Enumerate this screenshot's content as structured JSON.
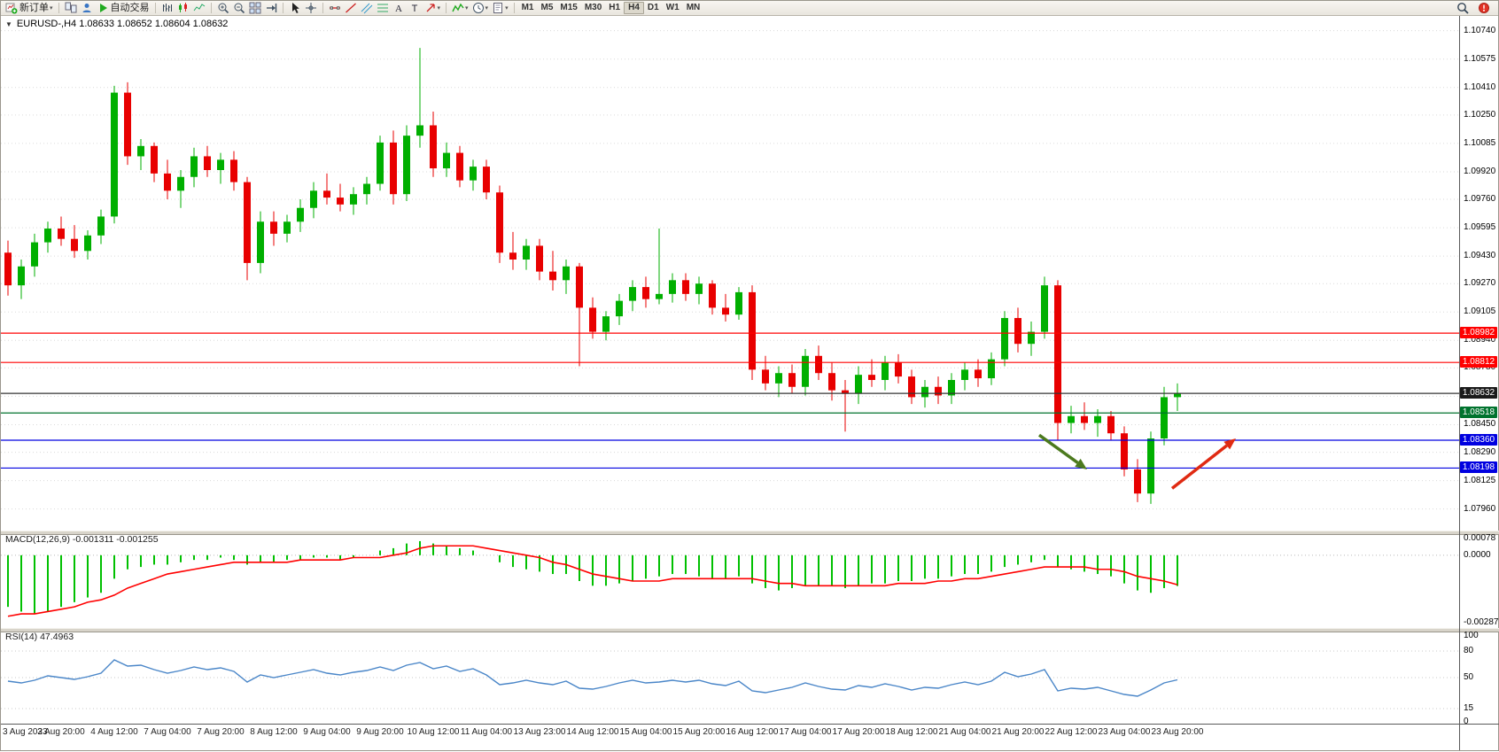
{
  "toolbar": {
    "groups": [
      {
        "items": [
          {
            "name": "new-order",
            "icon": "new-order",
            "label": "新订单",
            "caret": true
          }
        ]
      },
      {
        "items": [
          {
            "name": "charts",
            "icon": "charts"
          },
          {
            "name": "profile",
            "icon": "profile"
          },
          {
            "name": "auto-trading",
            "icon": "autotrade",
            "label": "自动交易"
          }
        ]
      },
      {
        "items": [
          {
            "name": "bar-chart",
            "icon": "bars"
          },
          {
            "name": "candle-chart",
            "icon": "candles"
          },
          {
            "name": "line-chart",
            "icon": "line"
          }
        ]
      },
      {
        "items": [
          {
            "name": "zoom-in",
            "icon": "zoom-in"
          },
          {
            "name": "zoom-out",
            "icon": "zoom-out"
          },
          {
            "name": "tile-windows",
            "icon": "tile"
          },
          {
            "name": "chart-shift",
            "icon": "shift"
          }
        ]
      },
      {
        "items": [
          {
            "name": "cursor",
            "icon": "cursor"
          },
          {
            "name": "crosshair",
            "icon": "crosshair"
          }
        ]
      },
      {
        "items": [
          {
            "name": "horizontal-line",
            "icon": "hline"
          },
          {
            "name": "trendline",
            "icon": "tline"
          },
          {
            "name": "channel",
            "icon": "channel"
          },
          {
            "name": "fibonacci",
            "icon": "fibo"
          },
          {
            "name": "text",
            "icon": "textA"
          },
          {
            "name": "label",
            "icon": "labelT"
          },
          {
            "name": "arrow-tools",
            "icon": "arrowtool",
            "caret": true
          }
        ]
      },
      {
        "items": [
          {
            "name": "indicators",
            "icon": "indicator",
            "caret": true
          },
          {
            "name": "periods",
            "icon": "clock",
            "caret": true
          },
          {
            "name": "templates",
            "icon": "template",
            "caret": true
          }
        ]
      }
    ],
    "timeframes": [
      "M1",
      "M5",
      "M15",
      "M30",
      "H1",
      "H4",
      "D1",
      "W1",
      "MN"
    ],
    "active_timeframe": "H4",
    "right": [
      {
        "name": "search",
        "icon": "magnifier"
      },
      {
        "name": "notification",
        "icon": "red-dot"
      }
    ]
  },
  "chart": {
    "collapse_icon": "▼",
    "symbol_info": "EURUSD-,H4  1.08633 1.08652 1.08604 1.08632"
  },
  "chart_data": {
    "type": "candlestick",
    "title": "EURUSD- H4",
    "symbol": "EURUSD-",
    "timeframe": "H4",
    "colors": {
      "up": "#00AF00",
      "down": "#E80000",
      "macd_hist": "#00C000",
      "macd_signal": "#FF0000",
      "rsi": "#4A86C8",
      "grid": "#DADADA",
      "current": "#333333"
    },
    "price_axis": {
      "ticks": [
        "1.10740",
        "1.10575",
        "1.10410",
        "1.10250",
        "1.10085",
        "1.09920",
        "1.09760",
        "1.09595",
        "1.09430",
        "1.09270",
        "1.09105",
        "1.08940",
        "1.08780",
        "1.08615",
        "1.08450",
        "1.08290",
        "1.08125",
        "1.07960"
      ]
    },
    "ohlc": [
      [
        1.0945,
        1.0952,
        1.092,
        1.0926
      ],
      [
        1.0926,
        1.0941,
        1.0918,
        1.0937
      ],
      [
        1.0937,
        1.0956,
        1.0931,
        1.0951
      ],
      [
        1.0951,
        1.0963,
        1.0945,
        1.0959
      ],
      [
        1.0959,
        1.0966,
        1.0949,
        1.0953
      ],
      [
        1.0953,
        1.0961,
        1.0942,
        1.0946
      ],
      [
        1.0946,
        1.0958,
        1.0941,
        1.0955
      ],
      [
        1.0955,
        1.097,
        1.095,
        1.0966
      ],
      [
        1.0966,
        1.1042,
        1.0962,
        1.1038
      ],
      [
        1.1038,
        1.1044,
        1.0996,
        1.1001
      ],
      [
        1.1001,
        1.1011,
        1.0993,
        1.1007
      ],
      [
        1.1007,
        1.1009,
        1.0986,
        1.0991
      ],
      [
        1.0991,
        1.0999,
        1.0976,
        1.0981
      ],
      [
        1.0981,
        1.0993,
        1.0971,
        1.0989
      ],
      [
        1.0989,
        1.1006,
        1.0983,
        1.1001
      ],
      [
        1.1001,
        1.1007,
        1.0989,
        1.0993
      ],
      [
        1.0993,
        1.1003,
        1.0985,
        1.0999
      ],
      [
        1.0999,
        1.1004,
        1.0981,
        1.0986
      ],
      [
        1.0986,
        1.0989,
        1.0929,
        1.0939
      ],
      [
        1.0939,
        1.0969,
        1.0933,
        1.0963
      ],
      [
        1.0963,
        1.0969,
        1.0949,
        1.0956
      ],
      [
        1.0956,
        1.0967,
        1.0951,
        1.0963
      ],
      [
        1.0963,
        1.0976,
        1.0957,
        1.0971
      ],
      [
        1.0971,
        1.0986,
        1.0965,
        1.0981
      ],
      [
        1.0981,
        1.0991,
        1.0973,
        1.0977
      ],
      [
        1.0977,
        1.0985,
        1.0969,
        1.0973
      ],
      [
        1.0973,
        1.0983,
        1.0967,
        1.0979
      ],
      [
        1.0979,
        1.0989,
        1.0973,
        1.0985
      ],
      [
        1.0985,
        1.1013,
        1.0981,
        1.1009
      ],
      [
        1.1009,
        1.1016,
        1.0973,
        1.0979
      ],
      [
        1.0979,
        1.1019,
        1.0975,
        1.1013
      ],
      [
        1.1013,
        1.1064,
        1.1006,
        1.1019
      ],
      [
        1.1019,
        1.1027,
        1.0989,
        1.0994
      ],
      [
        1.0994,
        1.1009,
        1.0989,
        1.1003
      ],
      [
        1.1003,
        1.1007,
        1.0983,
        1.0987
      ],
      [
        1.0987,
        1.0999,
        1.0981,
        1.0995
      ],
      [
        1.0995,
        1.0999,
        1.0976,
        1.098
      ],
      [
        1.098,
        1.0984,
        1.0939,
        1.0945
      ],
      [
        1.0945,
        1.0957,
        1.0935,
        1.0941
      ],
      [
        1.0941,
        1.0953,
        1.0935,
        1.0949
      ],
      [
        1.0949,
        1.0953,
        1.0929,
        1.0934
      ],
      [
        1.0934,
        1.0946,
        1.0923,
        1.0929
      ],
      [
        1.0929,
        1.0941,
        1.0921,
        1.0937
      ],
      [
        1.0937,
        1.0939,
        1.0879,
        1.0913
      ],
      [
        1.0913,
        1.0919,
        1.0895,
        1.0899
      ],
      [
        1.0899,
        1.0911,
        1.0894,
        1.0908
      ],
      [
        1.0908,
        1.0921,
        1.0903,
        1.0917
      ],
      [
        1.0917,
        1.0929,
        1.0911,
        1.0925
      ],
      [
        1.0925,
        1.0931,
        1.0913,
        1.0918
      ],
      [
        1.0918,
        1.0959,
        1.0915,
        1.0921
      ],
      [
        1.0921,
        1.0933,
        1.0916,
        1.0929
      ],
      [
        1.0929,
        1.0933,
        1.0917,
        1.0921
      ],
      [
        1.0921,
        1.0931,
        1.0915,
        1.0927
      ],
      [
        1.0927,
        1.0929,
        1.0909,
        1.0913
      ],
      [
        1.0913,
        1.0921,
        1.0905,
        1.0909
      ],
      [
        1.0909,
        1.0925,
        1.0906,
        1.0922
      ],
      [
        1.0922,
        1.0926,
        1.0871,
        1.0877
      ],
      [
        1.0877,
        1.0885,
        1.0865,
        1.0869
      ],
      [
        1.0869,
        1.0879,
        1.0861,
        1.0875
      ],
      [
        1.0875,
        1.088,
        1.0863,
        1.0867
      ],
      [
        1.0867,
        1.0889,
        1.0862,
        1.0885
      ],
      [
        1.0885,
        1.0891,
        1.0871,
        1.0875
      ],
      [
        1.0875,
        1.0881,
        1.0859,
        1.0865
      ],
      [
        1.0865,
        1.0871,
        1.0841,
        1.0863
      ],
      [
        1.0863,
        1.0879,
        1.0857,
        1.0874
      ],
      [
        1.0874,
        1.0883,
        1.0867,
        1.0871
      ],
      [
        1.0871,
        1.0885,
        1.0865,
        1.0881
      ],
      [
        1.0881,
        1.0886,
        1.0869,
        1.0873
      ],
      [
        1.0873,
        1.0877,
        1.0857,
        1.0861
      ],
      [
        1.0861,
        1.0871,
        1.0855,
        1.0867
      ],
      [
        1.0867,
        1.0873,
        1.0857,
        1.0862
      ],
      [
        1.0862,
        1.0875,
        1.0857,
        1.0871
      ],
      [
        1.0871,
        1.0881,
        1.0865,
        1.0877
      ],
      [
        1.0877,
        1.0883,
        1.0867,
        1.0872
      ],
      [
        1.0872,
        1.0887,
        1.0868,
        1.0883
      ],
      [
        1.0883,
        1.0911,
        1.0879,
        1.0907
      ],
      [
        1.0907,
        1.0913,
        1.0887,
        1.0892
      ],
      [
        1.0892,
        1.0905,
        1.0885,
        1.0899
      ],
      [
        1.0899,
        1.0931,
        1.0895,
        1.0926
      ],
      [
        1.0926,
        1.0929,
        1.0836,
        1.0846
      ],
      [
        1.0846,
        1.0856,
        1.084,
        1.085
      ],
      [
        1.085,
        1.0858,
        1.0842,
        1.0846
      ],
      [
        1.0846,
        1.0854,
        1.0838,
        1.085
      ],
      [
        1.085,
        1.0853,
        1.0836,
        1.084
      ],
      [
        1.084,
        1.0844,
        1.0815,
        1.0819
      ],
      [
        1.0819,
        1.0825,
        1.08,
        1.0805
      ],
      [
        1.0805,
        1.0841,
        1.0799,
        1.0837
      ],
      [
        1.0837,
        1.0867,
        1.0833,
        1.0861
      ],
      [
        1.0861,
        1.0869,
        1.0853,
        1.0863
      ]
    ],
    "levels": [
      {
        "price": 1.08982,
        "label": "1.08982",
        "color": "#FF0000"
      },
      {
        "price": 1.08812,
        "label": "1.08812",
        "color": "#FF0000"
      },
      {
        "price": 1.08518,
        "label": "1.08518",
        "color": "#00732E"
      },
      {
        "price": 1.0836,
        "label": "1.08360",
        "color": "#0000E0"
      },
      {
        "price": 1.08198,
        "label": "1.08198",
        "color": "#0000E0"
      }
    ],
    "current_price": {
      "value": 1.08632,
      "label": "1.08632",
      "color": "#1A1A1A"
    },
    "date_labels": [
      {
        "candle": 0,
        "label": "3 Aug 2023"
      },
      {
        "candle": 4,
        "label": "3 Aug 20:00"
      },
      {
        "candle": 8,
        "label": "4 Aug 12:00"
      },
      {
        "candle": 12,
        "label": "7 Aug 04:00"
      },
      {
        "candle": 16,
        "label": "7 Aug 20:00"
      },
      {
        "candle": 20,
        "label": "8 Aug 12:00"
      },
      {
        "candle": 24,
        "label": "9 Aug 04:00"
      },
      {
        "candle": 28,
        "label": "9 Aug 20:00"
      },
      {
        "candle": 32,
        "label": "10 Aug 12:00"
      },
      {
        "candle": 36,
        "label": "11 Aug 04:00"
      },
      {
        "candle": 40,
        "label": "13 Aug 23:00"
      },
      {
        "candle": 44,
        "label": "14 Aug 12:00"
      },
      {
        "candle": 48,
        "label": "15 Aug 04:00"
      },
      {
        "candle": 52,
        "label": "15 Aug 20:00"
      },
      {
        "candle": 56,
        "label": "16 Aug 12:00"
      },
      {
        "candle": 60,
        "label": "17 Aug 04:00"
      },
      {
        "candle": 64,
        "label": "17 Aug 20:00"
      },
      {
        "candle": 68,
        "label": "18 Aug 12:00"
      },
      {
        "candle": 72,
        "label": "21 Aug 04:00"
      },
      {
        "candle": 76,
        "label": "21 Aug 20:00"
      },
      {
        "candle": 80,
        "label": "22 Aug 12:00"
      },
      {
        "candle": 84,
        "label": "23 Aug 04:00"
      },
      {
        "candle": 88,
        "label": "23 Aug 20:00"
      }
    ],
    "macd": {
      "label": "MACD(12,26,9) -0.001311 -0.001255",
      "scale": [
        {
          "label": "0.00078",
          "value": 0.00078
        },
        {
          "label": "0.0000",
          "value": 0
        },
        {
          "label": "-0.002871",
          "value": -0.002871
        }
      ],
      "hist": [
        -0.0022,
        -0.0024,
        -0.0025,
        -0.0024,
        -0.0022,
        -0.002,
        -0.0018,
        -0.0016,
        -0.001,
        -0.0006,
        -0.0005,
        -0.0004,
        -0.0004,
        -0.0003,
        -0.0002,
        -0.0002,
        -0.0001,
        -0.0002,
        -0.0004,
        -0.0003,
        -0.0003,
        -0.0002,
        -0.0002,
        -0.0001,
        -0.0001,
        -0.0002,
        -0.0001,
        0.0,
        0.0002,
        0.0003,
        0.0005,
        0.0006,
        0.0005,
        0.0004,
        0.0003,
        0.0002,
        0.0,
        -0.0003,
        -0.0005,
        -0.0006,
        -0.0007,
        -0.0008,
        -0.0008,
        -0.0011,
        -0.0013,
        -0.0013,
        -0.0012,
        -0.0011,
        -0.001,
        -0.0009,
        -0.0008,
        -0.0008,
        -0.0009,
        -0.001,
        -0.001,
        -0.0009,
        -0.0012,
        -0.0014,
        -0.0015,
        -0.0014,
        -0.0013,
        -0.0013,
        -0.0013,
        -0.0014,
        -0.0013,
        -0.0012,
        -0.0012,
        -0.0011,
        -0.0011,
        -0.001,
        -0.001,
        -0.0009,
        -0.0008,
        -0.0008,
        -0.0007,
        -0.0005,
        -0.0004,
        -0.0003,
        -0.0002,
        -0.0005,
        -0.0006,
        -0.0007,
        -0.0008,
        -0.0009,
        -0.0012,
        -0.0015,
        -0.0016,
        -0.0014,
        -0.001311
      ],
      "signal": [
        -0.0026,
        -0.0025,
        -0.0025,
        -0.0024,
        -0.0023,
        -0.0022,
        -0.002,
        -0.0019,
        -0.0017,
        -0.0014,
        -0.0012,
        -0.001,
        -0.0008,
        -0.0007,
        -0.0006,
        -0.0005,
        -0.0004,
        -0.0003,
        -0.0003,
        -0.0003,
        -0.0003,
        -0.0003,
        -0.0002,
        -0.0002,
        -0.0002,
        -0.0002,
        -0.0001,
        -0.0001,
        -0.0001,
        0.0,
        0.0001,
        0.0003,
        0.0004,
        0.0004,
        0.0004,
        0.0004,
        0.0003,
        0.0002,
        0.0001,
        0.0,
        -0.0001,
        -0.0003,
        -0.0004,
        -0.0006,
        -0.0008,
        -0.0009,
        -0.001,
        -0.0011,
        -0.0011,
        -0.0011,
        -0.001,
        -0.001,
        -0.001,
        -0.001,
        -0.001,
        -0.001,
        -0.001,
        -0.0011,
        -0.0012,
        -0.0012,
        -0.0013,
        -0.0013,
        -0.0013,
        -0.0013,
        -0.0013,
        -0.0013,
        -0.0013,
        -0.0012,
        -0.0012,
        -0.0012,
        -0.0011,
        -0.0011,
        -0.001,
        -0.001,
        -0.0009,
        -0.0008,
        -0.0007,
        -0.0006,
        -0.0005,
        -0.0005,
        -0.0005,
        -0.0005,
        -0.0006,
        -0.0006,
        -0.0007,
        -0.0009,
        -0.001,
        -0.0011,
        -0.001255
      ]
    },
    "rsi": {
      "label": "RSI(14) 47.4963",
      "scale": [
        {
          "label": "100",
          "value": 100,
          "grid": false
        },
        {
          "label": "80",
          "value": 80,
          "grid": true
        },
        {
          "label": "50",
          "value": 50,
          "grid": true
        },
        {
          "label": "15",
          "value": 15,
          "grid": true
        },
        {
          "label": "0",
          "value": 0,
          "grid": false
        }
      ],
      "values": [
        46,
        44,
        47,
        52,
        50,
        48,
        51,
        55,
        70,
        63,
        64,
        59,
        55,
        58,
        62,
        59,
        61,
        57,
        45,
        53,
        50,
        53,
        56,
        59,
        55,
        53,
        56,
        58,
        62,
        58,
        64,
        67,
        60,
        63,
        57,
        60,
        53,
        42,
        44,
        47,
        44,
        42,
        46,
        38,
        37,
        40,
        44,
        47,
        44,
        45,
        47,
        45,
        47,
        43,
        41,
        46,
        35,
        33,
        36,
        39,
        44,
        40,
        37,
        36,
        41,
        39,
        43,
        40,
        36,
        39,
        38,
        42,
        45,
        42,
        46,
        56,
        51,
        54,
        59,
        35,
        38,
        37,
        39,
        35,
        31,
        29,
        36,
        44,
        47.4963
      ]
    },
    "arrows": [
      {
        "name": "bearish-arrow",
        "color": "#4C7A1E",
        "from": [
          77.6,
          1.0839
        ],
        "to": [
          81.2,
          1.0819
        ]
      },
      {
        "name": "bullish-arrow",
        "color": "#E02A12",
        "from": [
          87.6,
          1.0808
        ],
        "to": [
          92.4,
          1.0837
        ]
      }
    ]
  }
}
